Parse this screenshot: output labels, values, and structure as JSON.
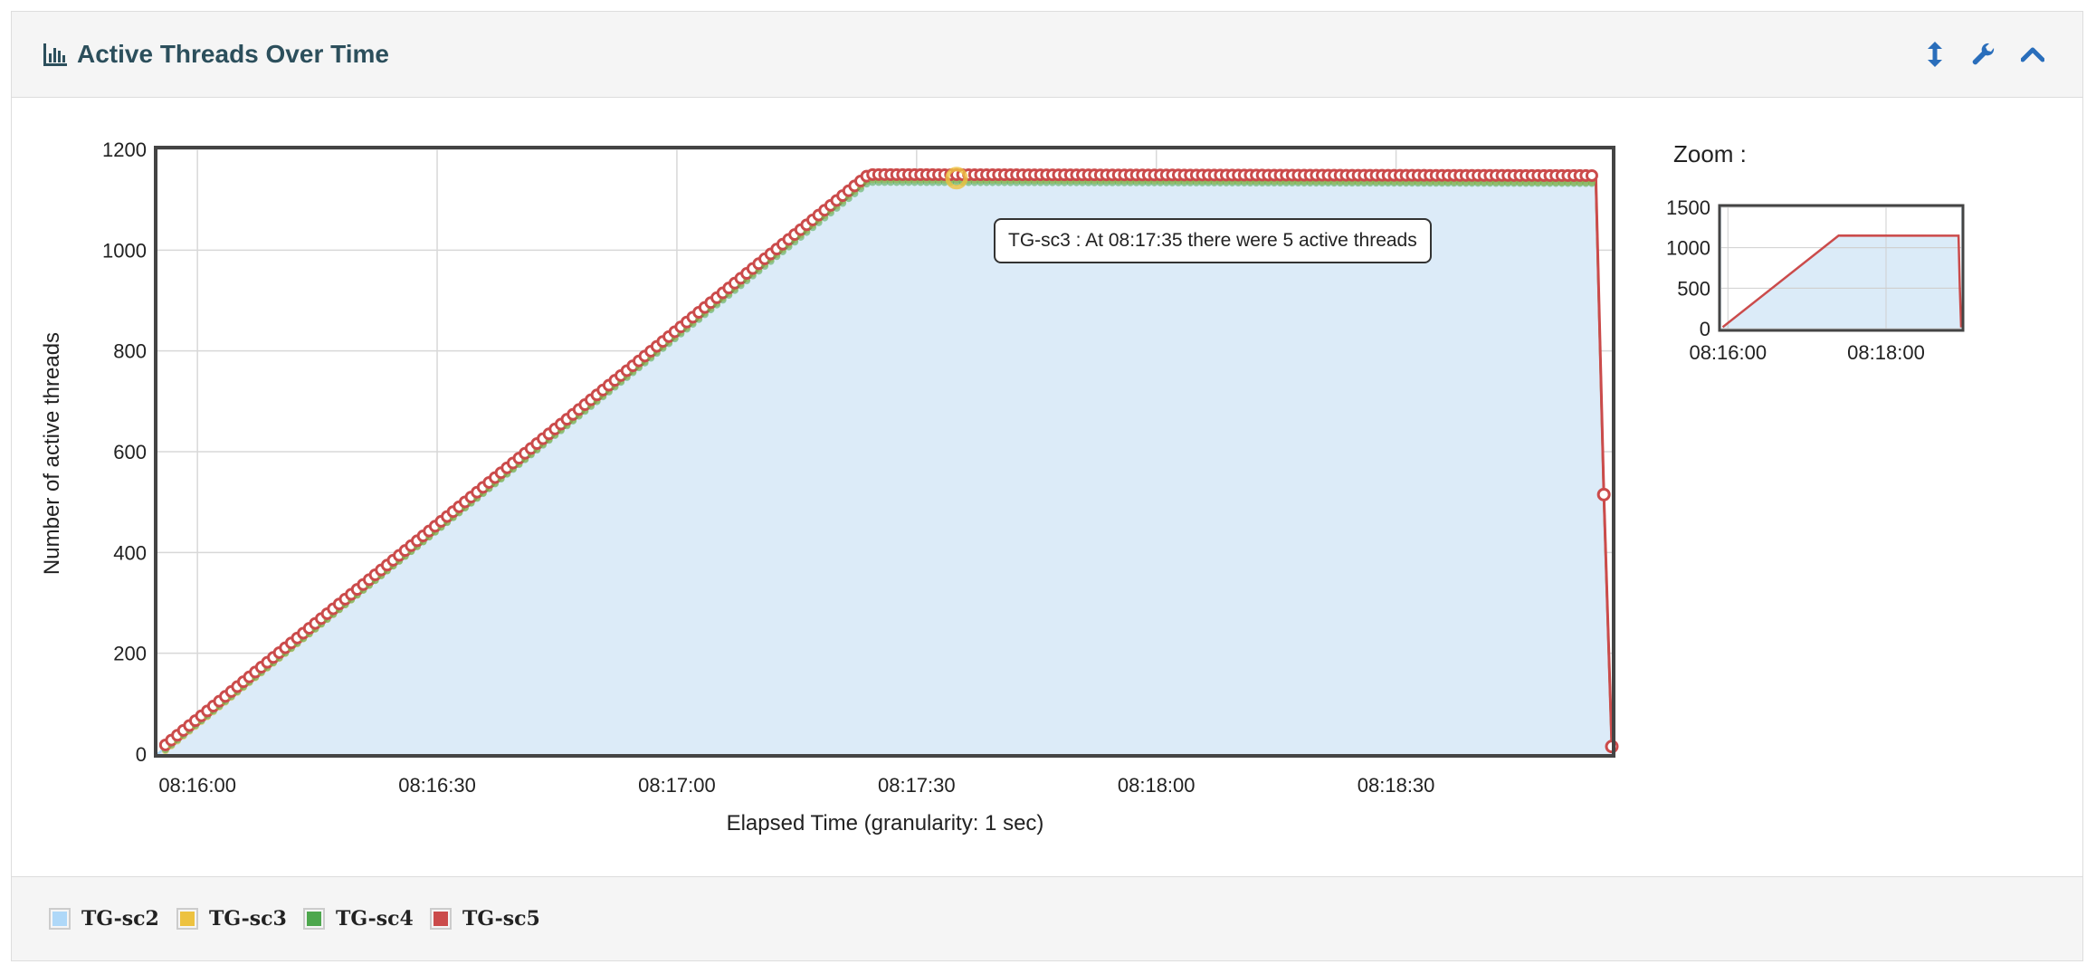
{
  "panel": {
    "title": "Active Threads Over Time"
  },
  "tools": [
    {
      "name": "resize-vertical-icon"
    },
    {
      "name": "wrench-icon"
    },
    {
      "name": "chevron-up-icon"
    }
  ],
  "tooltip": {
    "text": "TG-sc3 : At 08:17:35 there were 5 active threads"
  },
  "zoom": {
    "label": "Zoom :",
    "yticks": [
      "0",
      "500",
      "1000",
      "1500"
    ],
    "xticks": [
      "08:16:00",
      "08:18:00"
    ],
    "ylim": [
      0,
      1500
    ]
  },
  "legend": [
    {
      "label": "TG-sc2",
      "color": "#afd8f8"
    },
    {
      "label": "TG-sc3",
      "color": "#edc240"
    },
    {
      "label": "TG-sc4",
      "color": "#4da74d"
    },
    {
      "label": "TG-sc5",
      "color": "#cb4b4b"
    }
  ],
  "chart_data": {
    "type": "line",
    "xlabel": "Elapsed Time (granularity: 1 sec)",
    "ylabel": "Number of active threads",
    "ylim": [
      0,
      1200
    ],
    "yticks": [
      0,
      200,
      400,
      600,
      800,
      1000,
      1200
    ],
    "xticks": [
      "08:16:00",
      "08:16:30",
      "08:17:00",
      "08:17:30",
      "08:18:00",
      "08:18:30"
    ],
    "xlim": [
      "08:15:55",
      "08:18:57"
    ],
    "grid": true,
    "legend_position": "bottom",
    "series": [
      {
        "name": "TG-sc2",
        "color": "#afd8f8",
        "fill": true,
        "x": [
          "08:15:55",
          "08:17:24",
          "08:18:55",
          "08:18:56",
          "08:18:57"
        ],
        "y": [
          0,
          1140,
          1135,
          505,
          10
        ]
      },
      {
        "name": "TG-sc3",
        "color": "#edc240",
        "x": [
          "08:15:56",
          "08:17:24",
          "08:18:55",
          "08:18:56",
          "08:18:57"
        ],
        "y": [
          12,
          1145,
          1140,
          510,
          12
        ]
      },
      {
        "name": "TG-sc4",
        "color": "#4da74d",
        "x": [
          "08:15:56",
          "08:17:24",
          "08:18:55",
          "08:18:56",
          "08:18:57"
        ],
        "y": [
          14,
          1140,
          1138,
          508,
          12
        ]
      },
      {
        "name": "TG-sc5",
        "color": "#cb4b4b",
        "x": [
          "08:15:56",
          "08:17:24",
          "08:18:55",
          "08:18:56",
          "08:18:57"
        ],
        "y": [
          18,
          1150,
          1148,
          515,
          15
        ]
      }
    ]
  }
}
